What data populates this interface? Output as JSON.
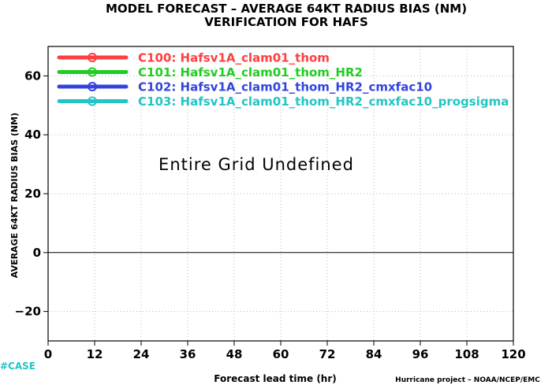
{
  "chart_data": {
    "type": "line",
    "title": "MODEL FORECAST – AVERAGE 64KT RADIUS BIAS (NM)",
    "subtitle": "VERIFICATION FOR HAFS",
    "xlabel": "Forecast lead time (hr)",
    "ylabel": "AVERAGE 64KT RADIUS BIAS (NM)",
    "xlim": [
      0,
      120
    ],
    "ylim": [
      -30,
      70
    ],
    "xticks": [
      0,
      12,
      24,
      36,
      48,
      60,
      72,
      84,
      96,
      108,
      120
    ],
    "yticks": [
      -20,
      0,
      20,
      40,
      60
    ],
    "grid": true,
    "zero_line": true,
    "legend_position": "top-left",
    "series": [
      {
        "name": "C100: Hafsv1A_clam01_thom",
        "color": "#ff4040",
        "values": []
      },
      {
        "name": "C101: Hafsv1A_clam01_thom_HR2",
        "color": "#22cc22",
        "values": []
      },
      {
        "name": "C102: Hafsv1A_clam01_thom_HR2_cmxfac10",
        "color": "#3344dd",
        "values": []
      },
      {
        "name": "C103: Hafsv1A_clam01_thom_HR2_cmxfac10_progsigma",
        "color": "#22c5c5",
        "values": []
      }
    ],
    "annotation": "Entire Grid Undefined",
    "case_label": "#CASE",
    "case_color": "#22c5c5",
    "credit": "Hurricane project – NOAA/NCEP/EMC"
  }
}
